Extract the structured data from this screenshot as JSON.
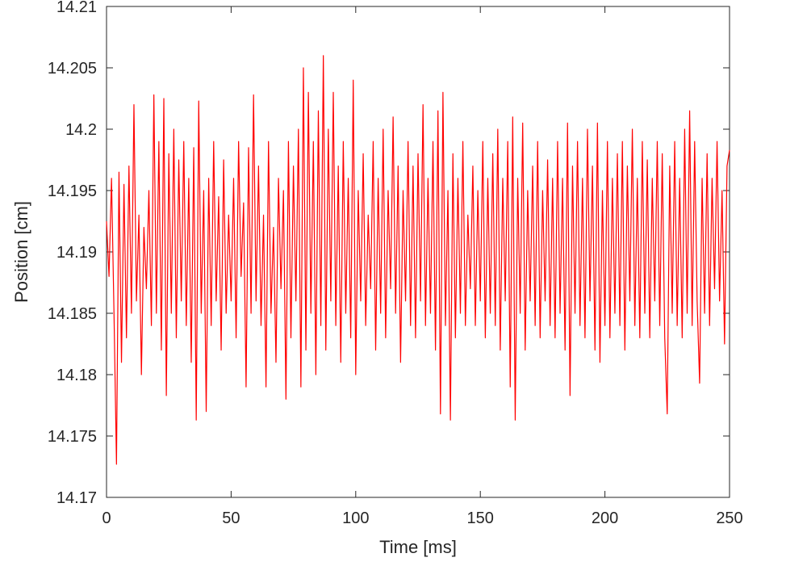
{
  "chart_data": {
    "type": "line",
    "xlabel": "Time [ms]",
    "ylabel": "Position [cm]",
    "color": "#ff0000",
    "xlim": [
      0,
      250
    ],
    "xticks": [
      0,
      50,
      100,
      150,
      200,
      250
    ],
    "ylim": [
      14.17,
      14.21
    ],
    "yticks": [
      14.17,
      14.175,
      14.18,
      14.185,
      14.19,
      14.195,
      14.2,
      14.205,
      14.21
    ],
    "x": [
      0,
      1,
      2,
      3,
      4,
      5,
      6,
      7,
      8,
      9,
      10,
      11,
      12,
      13,
      14,
      15,
      16,
      17,
      18,
      19,
      20,
      21,
      22,
      23,
      24,
      25,
      26,
      27,
      28,
      29,
      30,
      31,
      32,
      33,
      34,
      35,
      36,
      37,
      38,
      39,
      40,
      41,
      42,
      43,
      44,
      45,
      46,
      47,
      48,
      49,
      50,
      51,
      52,
      53,
      54,
      55,
      56,
      57,
      58,
      59,
      60,
      61,
      62,
      63,
      64,
      65,
      66,
      67,
      68,
      69,
      70,
      71,
      72,
      73,
      74,
      75,
      76,
      77,
      78,
      79,
      80,
      81,
      82,
      83,
      84,
      85,
      86,
      87,
      88,
      89,
      90,
      91,
      92,
      93,
      94,
      95,
      96,
      97,
      98,
      99,
      100,
      101,
      102,
      103,
      104,
      105,
      106,
      107,
      108,
      109,
      110,
      111,
      112,
      113,
      114,
      115,
      116,
      117,
      118,
      119,
      120,
      121,
      122,
      123,
      124,
      125,
      126,
      127,
      128,
      129,
      130,
      131,
      132,
      133,
      134,
      135,
      136,
      137,
      138,
      139,
      140,
      141,
      142,
      143,
      144,
      145,
      146,
      147,
      148,
      149,
      150,
      151,
      152,
      153,
      154,
      155,
      156,
      157,
      158,
      159,
      160,
      161,
      162,
      163,
      164,
      165,
      166,
      167,
      168,
      169,
      170,
      171,
      172,
      173,
      174,
      175,
      176,
      177,
      178,
      179,
      180,
      181,
      182,
      183,
      184,
      185,
      186,
      187,
      188,
      189,
      190,
      191,
      192,
      193,
      194,
      195,
      196,
      197,
      198,
      199,
      200,
      201,
      202,
      203,
      204,
      205,
      206,
      207,
      208,
      209,
      210,
      211,
      212,
      213,
      214,
      215,
      216,
      217,
      218,
      219,
      220,
      221,
      222,
      223,
      224,
      225,
      226,
      227,
      228,
      229,
      230,
      231,
      232,
      233,
      234,
      235,
      236,
      237,
      238,
      239,
      240,
      241,
      242,
      243,
      244,
      245,
      246,
      247,
      248,
      249,
      250
    ],
    "values": [
      14.1925,
      14.188,
      14.196,
      14.185,
      14.1727,
      14.1965,
      14.181,
      14.1955,
      14.183,
      14.197,
      14.185,
      14.202,
      14.186,
      14.193,
      14.18,
      14.192,
      14.187,
      14.195,
      14.184,
      14.2028,
      14.185,
      14.199,
      14.182,
      14.2025,
      14.1783,
      14.198,
      14.185,
      14.2,
      14.183,
      14.1975,
      14.186,
      14.199,
      14.184,
      14.196,
      14.181,
      14.1985,
      14.1763,
      14.2023,
      14.185,
      14.195,
      14.177,
      14.196,
      14.184,
      14.199,
      14.186,
      14.1945,
      14.182,
      14.1975,
      14.185,
      14.193,
      14.186,
      14.196,
      14.183,
      14.199,
      14.188,
      14.194,
      14.179,
      14.1985,
      14.185,
      14.2028,
      14.186,
      14.197,
      14.184,
      14.193,
      14.179,
      14.199,
      14.185,
      14.192,
      14.181,
      14.196,
      14.187,
      14.195,
      14.178,
      14.199,
      14.183,
      14.197,
      14.186,
      14.2,
      14.179,
      14.205,
      14.182,
      14.203,
      14.185,
      14.199,
      14.18,
      14.2015,
      14.184,
      14.206,
      14.182,
      14.2,
      14.186,
      14.203,
      14.184,
      14.197,
      14.181,
      14.199,
      14.185,
      14.196,
      14.183,
      14.204,
      14.18,
      14.195,
      14.186,
      14.198,
      14.184,
      14.193,
      14.187,
      14.199,
      14.182,
      14.196,
      14.185,
      14.2,
      14.183,
      14.195,
      14.187,
      14.201,
      14.185,
      14.197,
      14.181,
      14.195,
      14.186,
      14.199,
      14.184,
      14.197,
      14.183,
      14.198,
      14.186,
      14.202,
      14.184,
      14.196,
      14.185,
      14.199,
      14.182,
      14.2015,
      14.1768,
      14.203,
      14.184,
      14.195,
      14.1763,
      14.198,
      14.183,
      14.196,
      14.185,
      14.199,
      14.184,
      14.193,
      14.187,
      14.197,
      14.184,
      14.195,
      14.186,
      14.199,
      14.183,
      14.196,
      14.185,
      14.198,
      14.184,
      14.2,
      14.182,
      14.196,
      14.186,
      14.199,
      14.179,
      14.201,
      14.1763,
      14.196,
      14.185,
      14.2005,
      14.182,
      14.195,
      14.186,
      14.197,
      14.184,
      14.199,
      14.183,
      14.195,
      14.186,
      14.1975,
      14.184,
      14.196,
      14.183,
      14.199,
      14.185,
      14.196,
      14.182,
      14.2005,
      14.1783,
      14.197,
      14.185,
      14.199,
      14.184,
      14.196,
      14.183,
      14.2,
      14.186,
      14.197,
      14.182,
      14.2005,
      14.181,
      14.195,
      14.184,
      14.199,
      14.183,
      14.196,
      14.185,
      14.198,
      14.184,
      14.199,
      14.182,
      14.197,
      14.186,
      14.2,
      14.184,
      14.196,
      14.183,
      14.199,
      14.185,
      14.1975,
      14.183,
      14.196,
      14.186,
      14.199,
      14.184,
      14.198,
      14.183,
      14.1768,
      14.197,
      14.185,
      14.199,
      14.184,
      14.196,
      14.183,
      14.2,
      14.185,
      14.2015,
      14.184,
      14.199,
      14.186,
      14.1793,
      14.196,
      14.185,
      14.198,
      14.184,
      14.196,
      14.187,
      14.199,
      14.186,
      14.195,
      14.1825,
      14.197,
      14.1983
    ]
  }
}
